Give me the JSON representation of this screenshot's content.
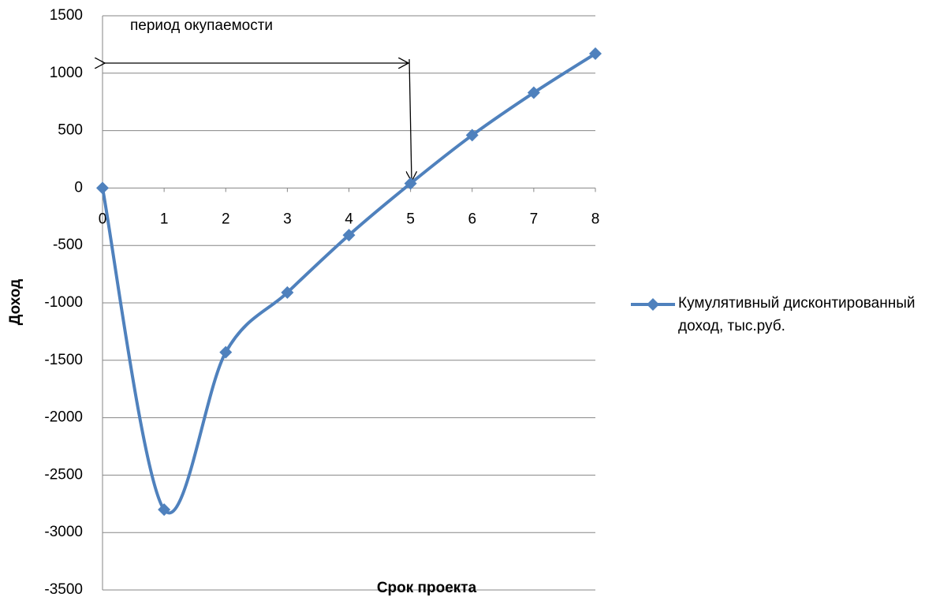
{
  "chart_data": {
    "type": "line",
    "annotation": "период окупаемости",
    "x_label": "Срок проекта",
    "y_label": "Доход",
    "x": [
      0,
      1,
      2,
      3,
      4,
      5,
      6,
      7,
      8
    ],
    "xlim": [
      0,
      8
    ],
    "xticks": [
      0,
      1,
      2,
      3,
      4,
      5,
      6,
      7,
      8
    ],
    "ylim": [
      -3500,
      1500
    ],
    "yticks": [
      -3500,
      -3000,
      -2500,
      -2000,
      -1500,
      -1000,
      -500,
      0,
      500,
      1000,
      1500
    ],
    "grid": true,
    "legend": "right",
    "series": [
      {
        "name": "Кумулятивный дисконтированный доход, тыс.руб.",
        "color": "#4f81bd",
        "values": [
          0,
          -2800,
          -1430,
          -910,
          -410,
          40,
          460,
          830,
          1170
        ]
      }
    ]
  }
}
